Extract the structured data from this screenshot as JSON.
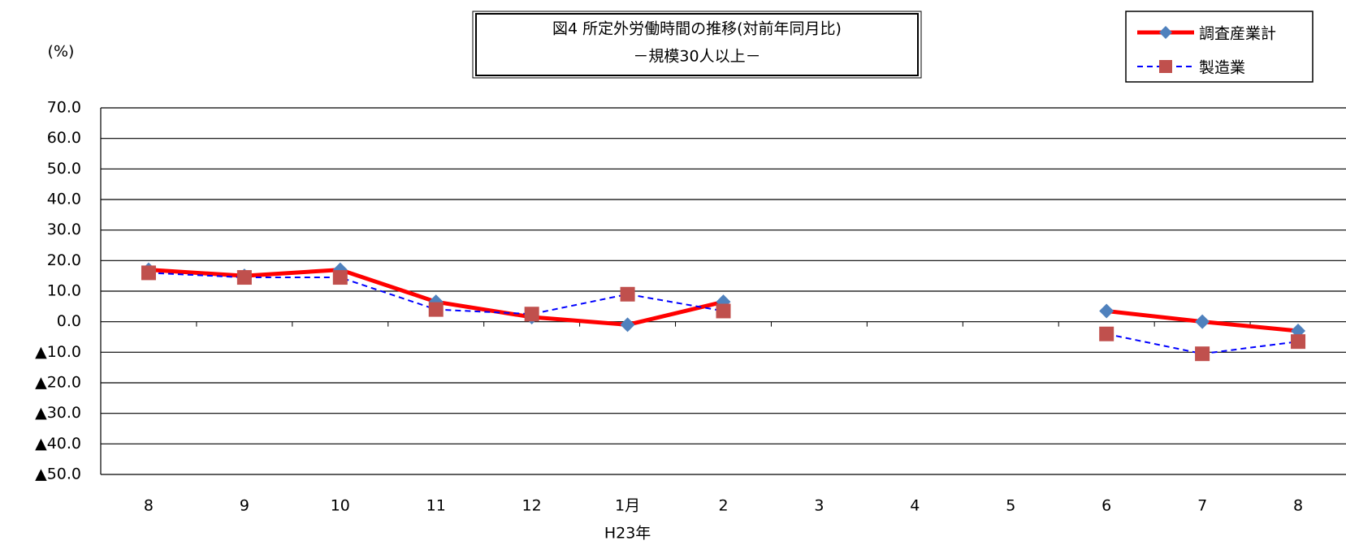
{
  "chart_data": {
    "type": "line",
    "title": "図4 所定外労働時間の推移(対前年同月比)",
    "subtitle": "－規模30人以上－",
    "y_axis_label": "(%)",
    "x_annotation": "H23年",
    "categories": [
      "8",
      "9",
      "10",
      "11",
      "12",
      "1月",
      "2",
      "3",
      "4",
      "5",
      "6",
      "7",
      "8"
    ],
    "series": [
      {
        "name": "調査産業計",
        "color": "#ff0000",
        "marker": "diamond",
        "marker_color": "#4f81bd",
        "dashed": false,
        "values": [
          17.0,
          15.0,
          17.0,
          6.5,
          1.5,
          -1.0,
          6.5,
          null,
          null,
          null,
          3.5,
          0.0,
          -3.0
        ]
      },
      {
        "name": "製造業",
        "color": "#0000ff",
        "marker": "square",
        "marker_color": "#c0504d",
        "dashed": true,
        "values": [
          16.0,
          14.5,
          14.5,
          4.0,
          2.5,
          9.0,
          3.5,
          null,
          null,
          null,
          -4.0,
          -10.5,
          -6.5
        ]
      }
    ],
    "ylim": [
      -50,
      70
    ],
    "yticks": [
      {
        "value": 70,
        "label": "70.0"
      },
      {
        "value": 60,
        "label": "60.0"
      },
      {
        "value": 50,
        "label": "50.0"
      },
      {
        "value": 40,
        "label": "40.0"
      },
      {
        "value": 30,
        "label": "30.0"
      },
      {
        "value": 20,
        "label": "20.0"
      },
      {
        "value": 10,
        "label": "10.0"
      },
      {
        "value": 0,
        "label": "0.0"
      },
      {
        "value": -10,
        "label": "▲10.0"
      },
      {
        "value": -20,
        "label": "▲20.0"
      },
      {
        "value": -30,
        "label": "▲30.0"
      },
      {
        "value": -40,
        "label": "▲40.0"
      },
      {
        "value": -50,
        "label": "▲50.0"
      }
    ],
    "grid": true
  }
}
